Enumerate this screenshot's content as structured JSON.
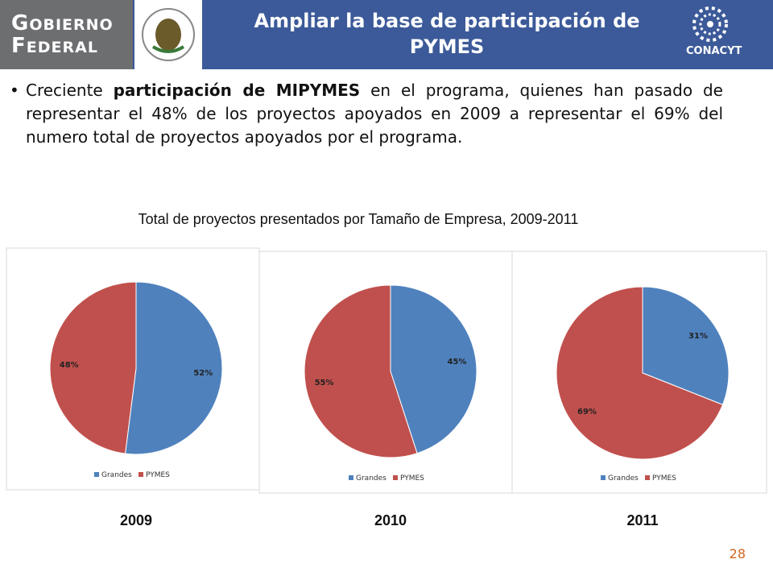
{
  "header": {
    "logo_left": [
      "GOBIERNO",
      "FEDERAL"
    ],
    "title": "Ampliar la base de participación de PYMES",
    "logo_right": "CONACYT"
  },
  "bullet": {
    "parts": [
      "Creciente ",
      "participación de MIPYMES",
      " en el programa, quienes han pasado de representar el 48% de los proyectos apoyados en 2009 a representar el 69% del numero total de proyectos apoyados por el programa."
    ]
  },
  "charts_title": "Total de proyectos presentados por Tamaño de Empresa, 2009-2011",
  "chart_data": [
    {
      "type": "pie",
      "title": "2009",
      "categories": [
        "Grandes",
        "PYMES"
      ],
      "values": [
        52,
        48
      ],
      "value_labels": [
        "52%",
        "48%"
      ],
      "colors": [
        "#4f81bd",
        "#c0504d"
      ]
    },
    {
      "type": "pie",
      "title": "2010",
      "categories": [
        "Grandes",
        "PYMES"
      ],
      "values": [
        45,
        55
      ],
      "value_labels": [
        "45%",
        "55%"
      ],
      "colors": [
        "#4f81bd",
        "#c0504d"
      ]
    },
    {
      "type": "pie",
      "title": "2011",
      "categories": [
        "Grandes",
        "PYMES"
      ],
      "values": [
        31,
        69
      ],
      "value_labels": [
        "31%",
        "69%"
      ],
      "colors": [
        "#4f81bd",
        "#c0504d"
      ]
    }
  ],
  "page_number": "28"
}
